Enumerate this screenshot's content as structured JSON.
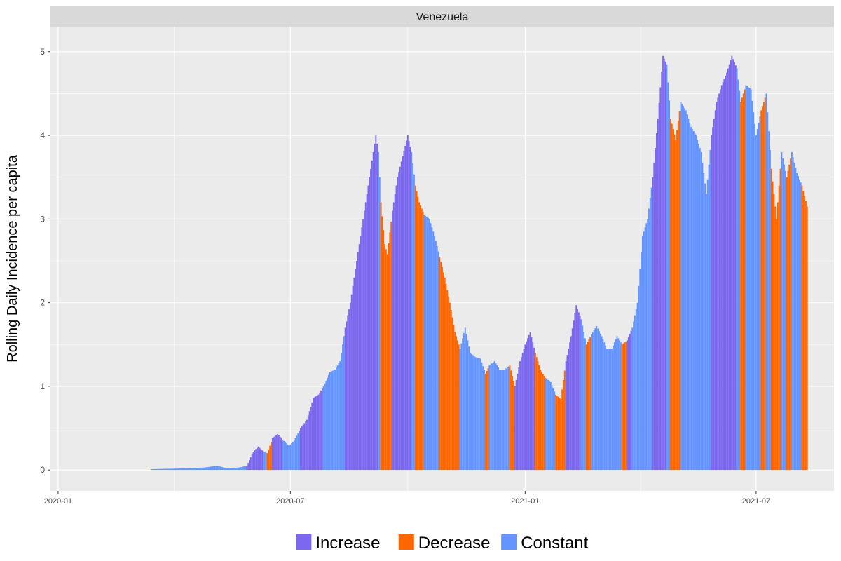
{
  "chart_data": {
    "type": "bar",
    "facet": "Venezuela",
    "ylabel": "Rolling Daily Incidence per capita",
    "xlabel": "",
    "xlim": [
      "2019-12-26",
      "2021-08-31"
    ],
    "ylim": [
      -0.25,
      5.3
    ],
    "x_ticks": [
      "2020-01",
      "2020-07",
      "2021-01",
      "2021-07"
    ],
    "y_ticks": [
      0,
      1,
      2,
      3,
      4,
      5
    ],
    "grid": true,
    "legend_position": "bottom",
    "categories_legend": [
      {
        "key": "increase",
        "label": "Increase",
        "color": "#7B68EE"
      },
      {
        "key": "decrease",
        "label": "Decrease",
        "color": "#FF6600"
      },
      {
        "key": "constant",
        "label": "Constant",
        "color": "#6495FF"
      }
    ],
    "start_date": "2020-03-14",
    "series_points": [
      [
        "2020-03-14",
        0.01,
        "constant"
      ],
      [
        "2020-04-12",
        0.02,
        "constant"
      ],
      [
        "2020-04-25",
        0.03,
        "constant"
      ],
      [
        "2020-05-05",
        0.05,
        "constant"
      ],
      [
        "2020-05-12",
        0.02,
        "constant"
      ],
      [
        "2020-05-22",
        0.03,
        "constant"
      ],
      [
        "2020-05-28",
        0.05,
        "increase"
      ],
      [
        "2020-06-02",
        0.22,
        "increase"
      ],
      [
        "2020-06-06",
        0.28,
        "increase"
      ],
      [
        "2020-06-10",
        0.22,
        "constant"
      ],
      [
        "2020-06-13",
        0.2,
        "decrease"
      ],
      [
        "2020-06-17",
        0.38,
        "increase"
      ],
      [
        "2020-06-21",
        0.43,
        "increase"
      ],
      [
        "2020-06-25",
        0.36,
        "constant"
      ],
      [
        "2020-06-30",
        0.29,
        "constant"
      ],
      [
        "2020-07-04",
        0.35,
        "constant"
      ],
      [
        "2020-07-09",
        0.5,
        "increase"
      ],
      [
        "2020-07-14",
        0.6,
        "increase"
      ],
      [
        "2020-07-19",
        0.86,
        "increase"
      ],
      [
        "2020-07-23",
        0.9,
        "increase"
      ],
      [
        "2020-07-27",
        1.0,
        "constant"
      ],
      [
        "2020-08-01",
        1.17,
        "constant"
      ],
      [
        "2020-08-05",
        1.2,
        "constant"
      ],
      [
        "2020-08-09",
        1.3,
        "constant"
      ],
      [
        "2020-08-13",
        1.7,
        "increase"
      ],
      [
        "2020-08-17",
        2.0,
        "increase"
      ],
      [
        "2020-08-21",
        2.4,
        "increase"
      ],
      [
        "2020-08-25",
        2.8,
        "increase"
      ],
      [
        "2020-08-29",
        3.2,
        "increase"
      ],
      [
        "2020-09-02",
        3.6,
        "increase"
      ],
      [
        "2020-09-06",
        4.0,
        "increase"
      ],
      [
        "2020-09-08",
        3.8,
        "constant"
      ],
      [
        "2020-09-10",
        3.2,
        "decrease"
      ],
      [
        "2020-09-13",
        2.7,
        "decrease"
      ],
      [
        "2020-09-15",
        2.58,
        "decrease"
      ],
      [
        "2020-09-19",
        3.1,
        "increase"
      ],
      [
        "2020-09-23",
        3.5,
        "increase"
      ],
      [
        "2020-09-27",
        3.75,
        "increase"
      ],
      [
        "2020-10-01",
        4.0,
        "increase"
      ],
      [
        "2020-10-04",
        3.8,
        "constant"
      ],
      [
        "2020-10-07",
        3.4,
        "decrease"
      ],
      [
        "2020-10-10",
        3.2,
        "decrease"
      ],
      [
        "2020-10-14",
        3.05,
        "constant"
      ],
      [
        "2020-10-18",
        3.0,
        "constant"
      ],
      [
        "2020-10-22",
        2.8,
        "constant"
      ],
      [
        "2020-10-26",
        2.55,
        "decrease"
      ],
      [
        "2020-10-30",
        2.3,
        "decrease"
      ],
      [
        "2020-11-03",
        2.0,
        "decrease"
      ],
      [
        "2020-11-07",
        1.65,
        "decrease"
      ],
      [
        "2020-11-11",
        1.45,
        "constant"
      ],
      [
        "2020-11-15",
        1.7,
        "constant"
      ],
      [
        "2020-11-19",
        1.4,
        "constant"
      ],
      [
        "2020-11-23",
        1.35,
        "constant"
      ],
      [
        "2020-11-27",
        1.33,
        "constant"
      ],
      [
        "2020-12-01",
        1.15,
        "decrease"
      ],
      [
        "2020-12-04",
        1.25,
        "constant"
      ],
      [
        "2020-12-08",
        1.3,
        "constant"
      ],
      [
        "2020-12-12",
        1.2,
        "constant"
      ],
      [
        "2020-12-16",
        1.2,
        "constant"
      ],
      [
        "2020-12-20",
        1.25,
        "decrease"
      ],
      [
        "2020-12-24",
        1.0,
        "increase"
      ],
      [
        "2020-12-28",
        1.3,
        "increase"
      ],
      [
        "2021-01-01",
        1.5,
        "increase"
      ],
      [
        "2021-01-05",
        1.65,
        "increase"
      ],
      [
        "2021-01-09",
        1.4,
        "decrease"
      ],
      [
        "2021-01-13",
        1.2,
        "decrease"
      ],
      [
        "2021-01-17",
        1.1,
        "constant"
      ],
      [
        "2021-01-21",
        1.05,
        "constant"
      ],
      [
        "2021-01-25",
        0.9,
        "decrease"
      ],
      [
        "2021-01-29",
        0.85,
        "decrease"
      ],
      [
        "2021-02-02",
        1.3,
        "increase"
      ],
      [
        "2021-02-06",
        1.6,
        "increase"
      ],
      [
        "2021-02-10",
        1.97,
        "increase"
      ],
      [
        "2021-02-14",
        1.8,
        "constant"
      ],
      [
        "2021-02-18",
        1.5,
        "decrease"
      ],
      [
        "2021-02-22",
        1.62,
        "constant"
      ],
      [
        "2021-02-26",
        1.72,
        "constant"
      ],
      [
        "2021-03-02",
        1.6,
        "constant"
      ],
      [
        "2021-03-06",
        1.45,
        "constant"
      ],
      [
        "2021-03-10",
        1.45,
        "constant"
      ],
      [
        "2021-03-14",
        1.6,
        "constant"
      ],
      [
        "2021-03-18",
        1.5,
        "decrease"
      ],
      [
        "2021-03-22",
        1.55,
        "increase"
      ],
      [
        "2021-03-26",
        1.7,
        "constant"
      ],
      [
        "2021-03-30",
        2.0,
        "constant"
      ],
      [
        "2021-04-03",
        2.8,
        "constant"
      ],
      [
        "2021-04-07",
        3.0,
        "constant"
      ],
      [
        "2021-04-11",
        3.5,
        "increase"
      ],
      [
        "2021-04-15",
        4.2,
        "increase"
      ],
      [
        "2021-04-19",
        4.95,
        "increase"
      ],
      [
        "2021-04-22",
        4.85,
        "constant"
      ],
      [
        "2021-04-25",
        4.2,
        "decrease"
      ],
      [
        "2021-04-29",
        3.95,
        "decrease"
      ],
      [
        "2021-05-03",
        4.4,
        "constant"
      ],
      [
        "2021-05-07",
        4.3,
        "constant"
      ],
      [
        "2021-05-11",
        4.1,
        "constant"
      ],
      [
        "2021-05-15",
        4.0,
        "constant"
      ],
      [
        "2021-05-19",
        3.8,
        "constant"
      ],
      [
        "2021-05-23",
        3.3,
        "constant"
      ],
      [
        "2021-05-27",
        4.0,
        "increase"
      ],
      [
        "2021-05-31",
        4.4,
        "increase"
      ],
      [
        "2021-06-04",
        4.6,
        "increase"
      ],
      [
        "2021-06-08",
        4.75,
        "increase"
      ],
      [
        "2021-06-12",
        4.95,
        "increase"
      ],
      [
        "2021-06-16",
        4.8,
        "constant"
      ],
      [
        "2021-06-19",
        4.4,
        "decrease"
      ],
      [
        "2021-06-23",
        4.6,
        "constant"
      ],
      [
        "2021-06-27",
        4.55,
        "constant"
      ],
      [
        "2021-07-01",
        4.0,
        "constant"
      ],
      [
        "2021-07-05",
        4.3,
        "decrease"
      ],
      [
        "2021-07-09",
        4.5,
        "constant"
      ],
      [
        "2021-07-13",
        3.6,
        "decrease"
      ],
      [
        "2021-07-17",
        3.0,
        "decrease"
      ],
      [
        "2021-07-21",
        3.8,
        "constant"
      ],
      [
        "2021-07-25",
        3.5,
        "decrease"
      ],
      [
        "2021-07-29",
        3.8,
        "constant"
      ],
      [
        "2021-08-02",
        3.55,
        "constant"
      ],
      [
        "2021-08-06",
        3.4,
        "decrease"
      ],
      [
        "2021-08-10",
        3.15,
        "decrease"
      ]
    ]
  }
}
